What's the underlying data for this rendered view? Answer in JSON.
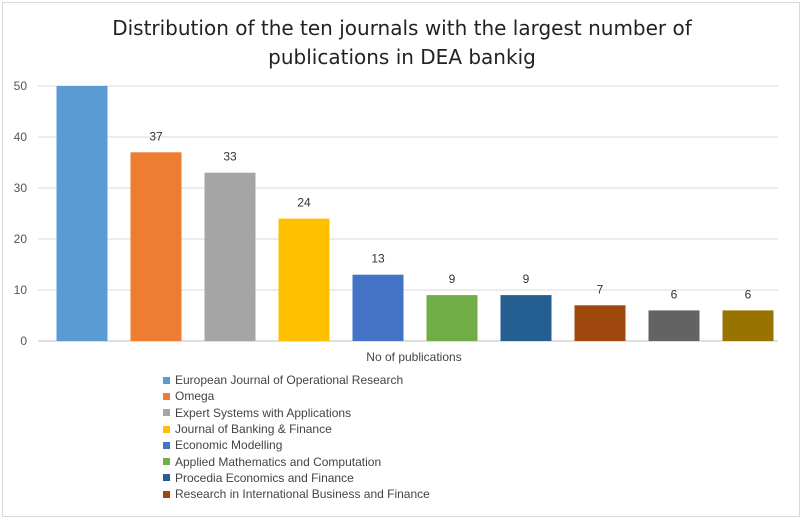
{
  "chart_data": {
    "type": "bar",
    "title": [
      "Distribution of the ten journals with the largest number of",
      "publications in DEA bankig"
    ],
    "xlabel": "No of publications",
    "ylabel": "",
    "ylim": [
      0,
      50
    ],
    "yticks": [
      0,
      10,
      20,
      30,
      40,
      50
    ],
    "grid": true,
    "legend_position": "bottom",
    "series": [
      {
        "name": "European Journal of Operational Research",
        "value": 50,
        "label": "",
        "color": "#5b9bd5"
      },
      {
        "name": "Omega",
        "value": 37,
        "label": "37",
        "color": "#ed7d31"
      },
      {
        "name": "Expert Systems with Applications",
        "value": 33,
        "label": "33",
        "color": "#a5a5a5"
      },
      {
        "name": "Journal of Banking & Finance",
        "value": 24,
        "label": "24",
        "color": "#ffc000"
      },
      {
        "name": "Economic Modelling",
        "value": 13,
        "label": "13",
        "color": "#4472c4"
      },
      {
        "name": "Applied Mathematics and Computation",
        "value": 9,
        "label": "9",
        "color": "#70ad47"
      },
      {
        "name": "Procedia Economics and Finance",
        "value": 9,
        "label": "9",
        "color": "#255e91"
      },
      {
        "name": "Research in International Business and Finance",
        "value": 7,
        "label": "7",
        "color": "#9e480e"
      },
      {
        "name": "",
        "value": 6,
        "label": "6",
        "color": "#636363"
      },
      {
        "name": "",
        "value": 6,
        "label": "6",
        "color": "#997300"
      }
    ]
  }
}
